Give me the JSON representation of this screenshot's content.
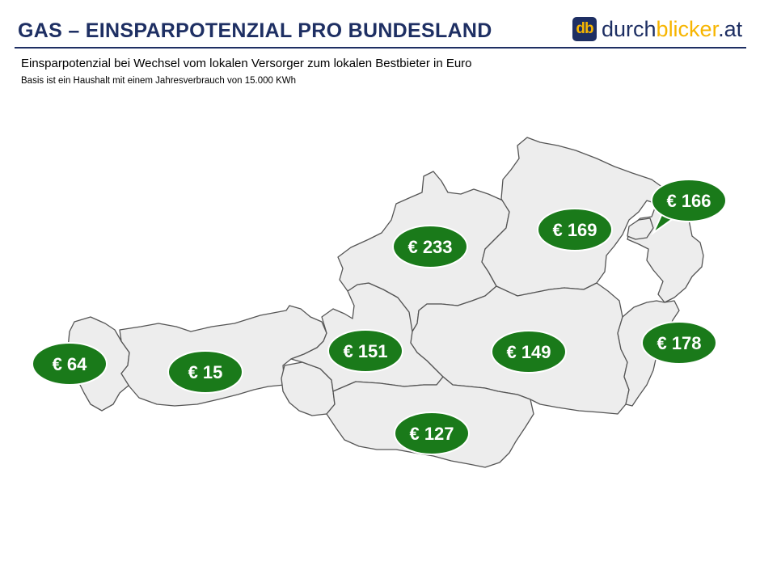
{
  "header": {
    "title": "GAS – EINSPARPOTENZIAL  PRO BUNDESLAND",
    "logo_mark": "db",
    "logo_text_a": "durch",
    "logo_text_b": "blicker",
    "logo_text_c": ".at",
    "subtitle": "Einsparpotenzial bei Wechsel vom lokalen Versorger zum lokalen Bestbieter in Euro",
    "basis": "Basis ist ein Haushalt mit einem Jahresverbrauch von 15.000 KWh"
  },
  "colors": {
    "title": "#1e2f63",
    "accent": "#f7b500",
    "bubble": "#1a7a1a",
    "map_fill": "#ededed"
  },
  "labels": [
    {
      "text": "€ 64"
    },
    {
      "text": "€ 15"
    },
    {
      "text": "€ 151"
    },
    {
      "text": "€ 233"
    },
    {
      "text": "€ 169"
    },
    {
      "text": "€ 166"
    },
    {
      "text": "€ 149"
    },
    {
      "text": "€ 178"
    },
    {
      "text": "€ 127"
    }
  ]
}
